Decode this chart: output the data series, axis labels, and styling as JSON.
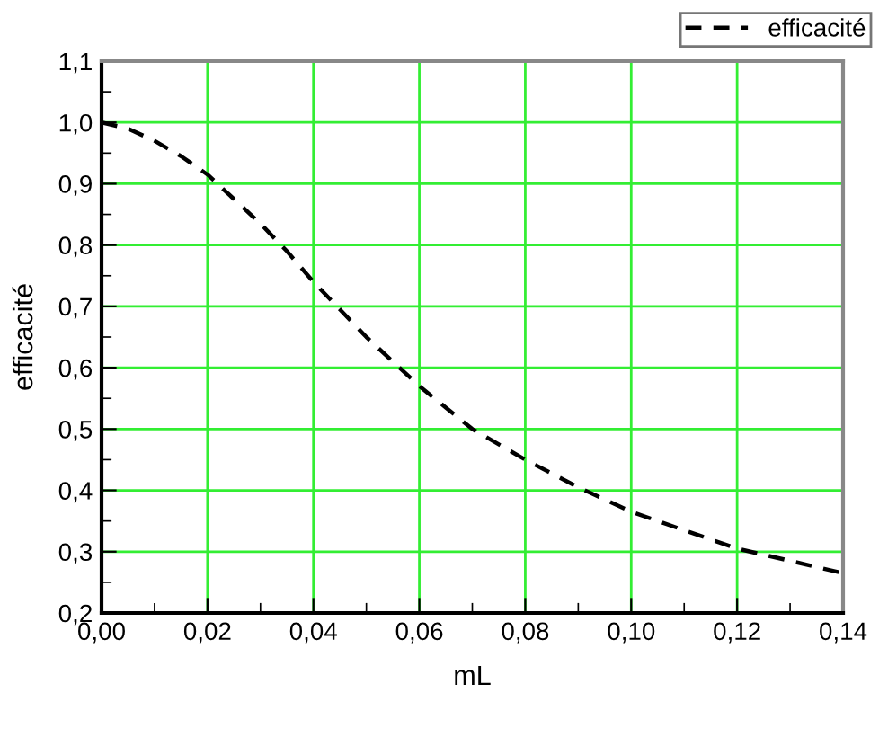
{
  "chart_data": {
    "type": "line",
    "xlabel": "mL",
    "ylabel": "efficacité",
    "x": [
      0.0,
      0.005,
      0.01,
      0.015,
      0.02,
      0.025,
      0.03,
      0.035,
      0.04,
      0.045,
      0.05,
      0.055,
      0.06,
      0.065,
      0.07,
      0.08,
      0.09,
      0.1,
      0.11,
      0.12,
      0.13,
      0.14
    ],
    "series": [
      {
        "name": "efficacité",
        "color": "#000000",
        "values": [
          1.0,
          0.99,
          0.97,
          0.945,
          0.915,
          0.875,
          0.835,
          0.79,
          0.74,
          0.695,
          0.65,
          0.61,
          0.57,
          0.535,
          0.5,
          0.45,
          0.405,
          0.365,
          0.335,
          0.305,
          0.285,
          0.265
        ]
      }
    ],
    "xlim": [
      0.0,
      0.14
    ],
    "ylim": [
      0.2,
      1.1
    ],
    "xticks": [
      {
        "value": 0.0,
        "label": "0,00"
      },
      {
        "value": 0.02,
        "label": "0,02"
      },
      {
        "value": 0.04,
        "label": "0,04"
      },
      {
        "value": 0.06,
        "label": "0,06"
      },
      {
        "value": 0.08,
        "label": "0,08"
      },
      {
        "value": 0.1,
        "label": "0,10"
      },
      {
        "value": 0.12,
        "label": "0,12"
      },
      {
        "value": 0.14,
        "label": "0,14"
      }
    ],
    "yticks": [
      {
        "value": 0.2,
        "label": "0,2"
      },
      {
        "value": 0.3,
        "label": "0,3"
      },
      {
        "value": 0.4,
        "label": "0,4"
      },
      {
        "value": 0.5,
        "label": "0,5"
      },
      {
        "value": 0.6,
        "label": "0,6"
      },
      {
        "value": 0.7,
        "label": "0,7"
      },
      {
        "value": 0.8,
        "label": "0,8"
      },
      {
        "value": 0.9,
        "label": "0,9"
      },
      {
        "value": 1.0,
        "label": "1,0"
      },
      {
        "value": 1.1,
        "label": "1,1"
      }
    ],
    "grid": true,
    "legend": "top right",
    "line_style": "dashed",
    "marker": "none"
  }
}
